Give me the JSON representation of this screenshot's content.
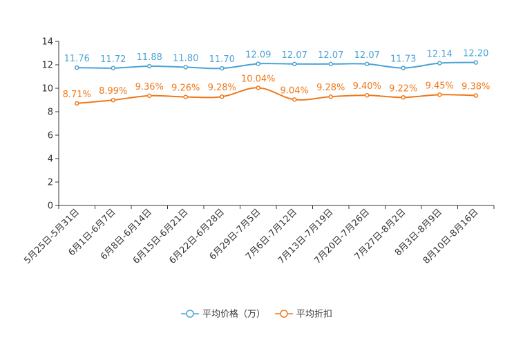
{
  "chart_data": {
    "type": "line",
    "title": "",
    "xlabel": "",
    "ylabel": "",
    "ylim": [
      0,
      14
    ],
    "yticks": [
      "0",
      "2",
      "4",
      "6",
      "8",
      "10",
      "12",
      "14"
    ],
    "grid": false,
    "legend_position": "bottom-center",
    "categories": [
      "5月25日-5月31日",
      "6月1日-6月7日",
      "6月8日-6月14日",
      "6月15日-6月21日",
      "6月22日-6月28日",
      "6月29日-7月5日",
      "7月6日-7月12日",
      "7月13日-7月19日",
      "7月20日-7月26日",
      "7月27日-8月2日",
      "8月3日-8月9日",
      "8月10日-8月16日"
    ],
    "series": [
      {
        "name": "平均价格（万）",
        "color": "#4aa3d6",
        "values": [
          11.76,
          11.72,
          11.88,
          11.8,
          11.7,
          12.09,
          12.07,
          12.07,
          12.07,
          11.73,
          12.14,
          12.2
        ],
        "labels": [
          "11.76",
          "11.72",
          "11.88",
          "11.80",
          "11.70",
          "12.09",
          "12.07",
          "12.07",
          "12.07",
          "11.73",
          "12.14",
          "12.20"
        ]
      },
      {
        "name": "平均折扣",
        "color": "#f07818",
        "values": [
          8.71,
          8.99,
          9.36,
          9.26,
          9.28,
          10.04,
          9.04,
          9.28,
          9.4,
          9.22,
          9.45,
          9.38
        ],
        "labels": [
          "8.71%",
          "8.99%",
          "9.36%",
          "9.26%",
          "9.28%",
          "10.04%",
          "9.04%",
          "9.28%",
          "9.40%",
          "9.22%",
          "9.45%",
          "9.38%"
        ]
      }
    ]
  }
}
